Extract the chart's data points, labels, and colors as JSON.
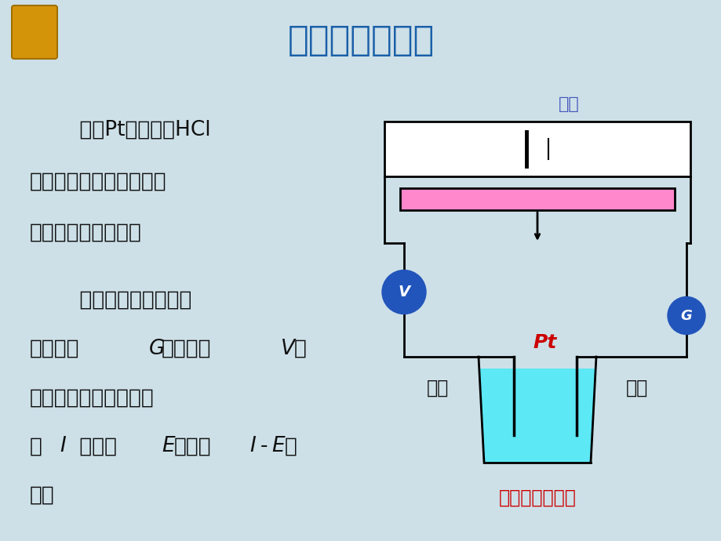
{
  "bg_color": "#cde0e8",
  "title": "分解电压的测定",
  "title_color": "#1a5fa8",
  "title_fontsize": 32,
  "text_color": "#111111",
  "diagram_caption": "分解电压的测定",
  "diagram_caption_color": "#cc0000",
  "source_label": "电源",
  "source_label_color": "#4455bb",
  "pt_label": "Pt",
  "pt_label_color": "#cc0000",
  "anode_label": "阳极",
  "cathode_label": "阴极",
  "electrode_label_color": "#111111",
  "resistor_color": "#ff88cc",
  "liquid_color": "#5de8f5",
  "meter_color": "#2255bb",
  "battery_color": "#111111",
  "circuit_lw": 2.0
}
